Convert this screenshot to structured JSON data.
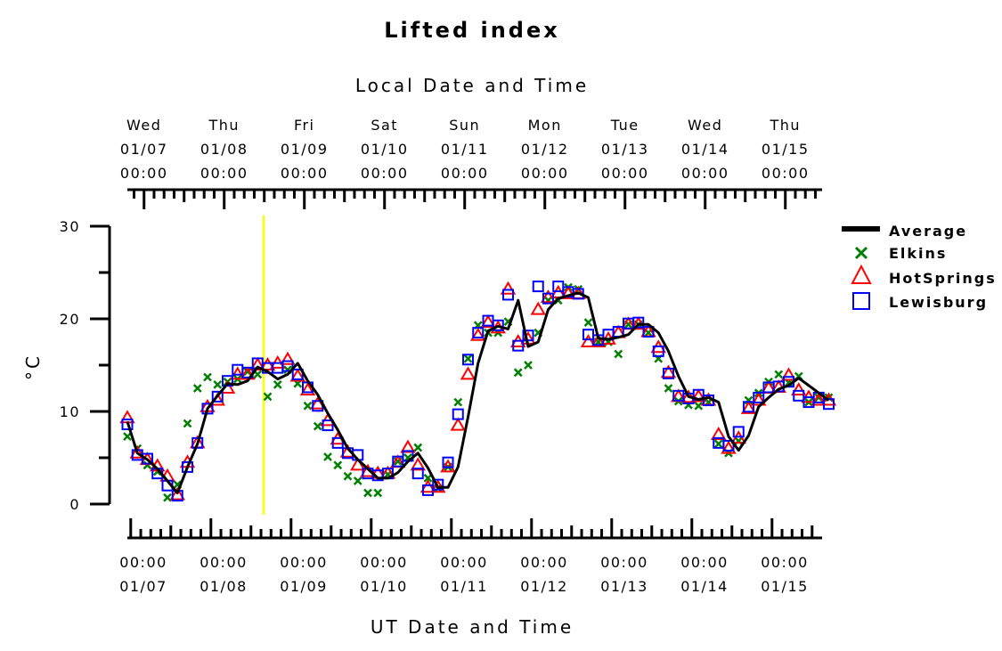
{
  "chart_data": {
    "type": "line",
    "title": "Lifted index",
    "top_axis_label": "Local Date and Time",
    "bottom_axis_label": "UT Date and Time",
    "ylabel": "°C",
    "ylim": [
      0,
      30
    ],
    "y_ticks": [
      "0",
      "10",
      "20",
      "30"
    ],
    "x_unit": "days since 01/07 00:00 UT",
    "xlim": [
      0,
      8.9
    ],
    "top_ticks": [
      {
        "day": "Wed",
        "date": "01/07",
        "time": "00:00",
        "x": 0.208
      },
      {
        "day": "Thu",
        "date": "01/08",
        "time": "00:00",
        "x": 1.208
      },
      {
        "day": "Fri",
        "date": "01/09",
        "time": "00:00",
        "x": 2.208
      },
      {
        "day": "Sat",
        "date": "01/10",
        "time": "00:00",
        "x": 3.208
      },
      {
        "day": "Sun",
        "date": "01/11",
        "time": "00:00",
        "x": 4.208
      },
      {
        "day": "Mon",
        "date": "01/12",
        "time": "00:00",
        "x": 5.208
      },
      {
        "day": "Tue",
        "date": "01/13",
        "time": "00:00",
        "x": 6.208
      },
      {
        "day": "Wed",
        "date": "01/14",
        "time": "00:00",
        "x": 7.208
      },
      {
        "day": "Thu",
        "date": "01/15",
        "time": "00:00",
        "x": 8.208
      }
    ],
    "bottom_ticks": [
      {
        "time": "00:00",
        "date": "01/07",
        "x": 0
      },
      {
        "time": "00:00",
        "date": "01/08",
        "x": 1
      },
      {
        "time": "00:00",
        "date": "01/09",
        "x": 2
      },
      {
        "time": "00:00",
        "date": "01/10",
        "x": 3
      },
      {
        "time": "00:00",
        "date": "01/11",
        "x": 4
      },
      {
        "time": "00:00",
        "date": "01/12",
        "x": 5
      },
      {
        "time": "00:00",
        "date": "01/13",
        "x": 6
      },
      {
        "time": "00:00",
        "date": "01/14",
        "x": 7
      },
      {
        "time": "00:00",
        "date": "01/15",
        "x": 8
      }
    ],
    "current_time_marker": {
      "x": 1.5,
      "color": "#ffff00"
    },
    "series": [
      {
        "name": "Average",
        "color": "#000000",
        "marker": "line",
        "x": [
          0,
          0.125,
          0.25,
          0.375,
          0.5,
          0.625,
          0.75,
          0.875,
          1,
          1.125,
          1.25,
          1.375,
          1.5,
          1.625,
          1.75,
          1.875,
          2,
          2.125,
          2.25,
          2.375,
          2.5,
          2.625,
          2.75,
          2.875,
          3,
          3.125,
          3.25,
          3.375,
          3.5,
          3.625,
          3.75,
          3.875,
          4,
          4.125,
          4.25,
          4.375,
          4.5,
          4.625,
          4.75,
          4.875,
          5,
          5.125,
          5.25,
          5.375,
          5.5,
          5.625,
          5.75,
          5.875,
          6,
          6.125,
          6.25,
          6.375,
          6.5,
          6.625,
          6.75,
          6.875,
          7,
          7.125,
          7.25,
          7.375,
          7.5,
          7.625,
          7.75,
          7.875,
          8,
          8.125,
          8.25,
          8.375,
          8.5,
          8.625,
          8.75
        ],
        "y": [
          8.9,
          5.5,
          4.8,
          3.8,
          2.5,
          1.2,
          4.0,
          6.5,
          10.3,
          11.7,
          13.0,
          12.9,
          13.3,
          14.8,
          14.3,
          13.5,
          14.0,
          15.2,
          13.3,
          11.8,
          9.8,
          8.0,
          6.0,
          4.8,
          3.8,
          2.8,
          2.8,
          3.4,
          4.6,
          5.5,
          3.9,
          1.8,
          1.8,
          4.0,
          9.4,
          15.2,
          18.7,
          19.2,
          18.9,
          22.0,
          17.0,
          17.5,
          21.0,
          22.2,
          22.5,
          22.8,
          22.3,
          17.9,
          17.8,
          18.0,
          18.3,
          19.4,
          19.4,
          18.5,
          16.5,
          13.8,
          11.6,
          11.3,
          11.5,
          11.0,
          7.3,
          5.8,
          7.4,
          10.5,
          11.5,
          12.4,
          12.8,
          13.6,
          12.8,
          12.0,
          11.2
        ]
      },
      {
        "name": "Elkins",
        "color": "#008000",
        "marker": "x",
        "x": [
          0,
          0.125,
          0.25,
          0.375,
          0.5,
          0.625,
          0.75,
          0.875,
          1,
          1.125,
          1.25,
          1.375,
          1.5,
          1.625,
          1.75,
          1.875,
          2,
          2.125,
          2.25,
          2.375,
          2.5,
          2.625,
          2.75,
          2.875,
          3,
          3.125,
          3.25,
          3.375,
          3.5,
          3.625,
          3.75,
          3.875,
          4,
          4.125,
          4.25,
          4.375,
          4.5,
          4.625,
          4.75,
          4.875,
          5,
          5.125,
          5.25,
          5.375,
          5.5,
          5.625,
          5.75,
          5.875,
          6,
          6.125,
          6.25,
          6.375,
          6.5,
          6.625,
          6.75,
          6.875,
          7,
          7.125,
          7.25,
          7.375,
          7.5,
          7.625,
          7.75,
          7.875,
          8,
          8.125,
          8.25,
          8.375,
          8.5,
          8.625,
          8.75
        ],
        "y": [
          7.3,
          6.0,
          4.2,
          3.5,
          0.7,
          2.1,
          8.7,
          12.5,
          13.7,
          12.9,
          13.2,
          13.5,
          14.3,
          14.0,
          11.6,
          12.9,
          14.5,
          13.0,
          10.6,
          8.4,
          5.1,
          4.2,
          3.0,
          2.5,
          1.2,
          1.2,
          3.2,
          4.6,
          5.0,
          6.1,
          2.8,
          1.7,
          4.0,
          11.0,
          15.7,
          19.3,
          18.5,
          18.5,
          19.7,
          14.2,
          15.0,
          18.5,
          22.0,
          22.0,
          23.4,
          23.2,
          19.6,
          17.5,
          17.5,
          16.2,
          19.4,
          19.4,
          18.5,
          15.7,
          12.5,
          11.1,
          10.7,
          10.6,
          11.0,
          6.5,
          5.5,
          6.8,
          11.2,
          12.0,
          13.2,
          14.0,
          13.1,
          13.8,
          11.0,
          11.5,
          11.5
        ]
      },
      {
        "name": "HotSprings",
        "color": "#ff0000",
        "marker": "triangle",
        "x": [
          0,
          0.125,
          0.25,
          0.375,
          0.5,
          0.625,
          0.75,
          0.875,
          1,
          1.125,
          1.25,
          1.375,
          1.5,
          1.625,
          1.75,
          1.875,
          2,
          2.125,
          2.25,
          2.375,
          2.5,
          2.625,
          2.75,
          2.875,
          3,
          3.125,
          3.25,
          3.375,
          3.5,
          3.625,
          3.75,
          3.875,
          4,
          4.125,
          4.25,
          4.375,
          4.5,
          4.625,
          4.75,
          4.875,
          5,
          5.125,
          5.25,
          5.375,
          5.5,
          5.625,
          5.75,
          5.875,
          6,
          6.125,
          6.25,
          6.375,
          6.5,
          6.625,
          6.75,
          6.875,
          7,
          7.125,
          7.25,
          7.375,
          7.5,
          7.625,
          7.75,
          7.875,
          8,
          8.125,
          8.25,
          8.375,
          8.5,
          8.625,
          8.75
        ],
        "y": [
          9.3,
          5.5,
          4.8,
          4.1,
          3.0,
          1.0,
          4.5,
          6.6,
          10.5,
          11.2,
          12.5,
          14.0,
          14.0,
          15.0,
          15.0,
          15.2,
          15.6,
          13.8,
          12.3,
          10.8,
          9.0,
          7.0,
          5.6,
          4.2,
          3.5,
          3.3,
          3.3,
          4.5,
          6.1,
          4.2,
          1.8,
          1.8,
          4.0,
          8.5,
          14.0,
          18.2,
          19.6,
          19.0,
          23.2,
          17.5,
          17.8,
          21.0,
          22.3,
          22.8,
          22.7,
          22.7,
          17.5,
          17.5,
          17.8,
          18.5,
          19.4,
          19.4,
          18.6,
          16.9,
          14.2,
          11.6,
          11.5,
          11.6,
          11.2,
          7.5,
          6.0,
          7.1,
          10.3,
          11.2,
          12.5,
          12.6,
          13.9,
          12.3,
          11.5,
          11.2,
          11.2
        ]
      },
      {
        "name": "Lewisburg",
        "color": "#0000ff",
        "marker": "square",
        "x": [
          0,
          0.125,
          0.25,
          0.375,
          0.5,
          0.625,
          0.75,
          0.875,
          1,
          1.125,
          1.25,
          1.375,
          1.5,
          1.625,
          1.75,
          1.875,
          2,
          2.125,
          2.25,
          2.375,
          2.5,
          2.625,
          2.75,
          2.875,
          3,
          3.125,
          3.25,
          3.375,
          3.5,
          3.625,
          3.75,
          3.875,
          4,
          4.125,
          4.25,
          4.375,
          4.5,
          4.625,
          4.75,
          4.875,
          5,
          5.125,
          5.25,
          5.375,
          5.5,
          5.625,
          5.75,
          5.875,
          6,
          6.125,
          6.25,
          6.375,
          6.5,
          6.625,
          6.75,
          6.875,
          7,
          7.125,
          7.25,
          7.375,
          7.5,
          7.625,
          7.75,
          7.875,
          8,
          8.125,
          8.25,
          8.375,
          8.5,
          8.625,
          8.75
        ],
        "y": [
          8.6,
          5.3,
          4.9,
          3.3,
          2.0,
          0.9,
          4.0,
          6.6,
          10.3,
          11.6,
          13.3,
          14.5,
          14.2,
          15.2,
          14.7,
          14.7,
          14.9,
          14.0,
          12.6,
          10.6,
          8.5,
          6.6,
          5.5,
          5.3,
          3.3,
          3.1,
          3.3,
          4.6,
          5.2,
          3.3,
          1.5,
          2.1,
          4.5,
          9.7,
          15.6,
          18.5,
          19.8,
          19.3,
          22.6,
          17.1,
          18.2,
          23.5,
          22.2,
          23.5,
          22.9,
          22.7,
          18.3,
          17.7,
          18.3,
          18.6,
          19.5,
          19.6,
          18.6,
          16.5,
          14.1,
          11.7,
          11.4,
          11.8,
          11.2,
          6.6,
          6.3,
          7.8,
          10.5,
          11.5,
          12.6,
          12.7,
          13.2,
          11.7,
          11.0,
          11.5,
          10.8
        ]
      }
    ],
    "legend": {
      "placement": "right"
    }
  }
}
